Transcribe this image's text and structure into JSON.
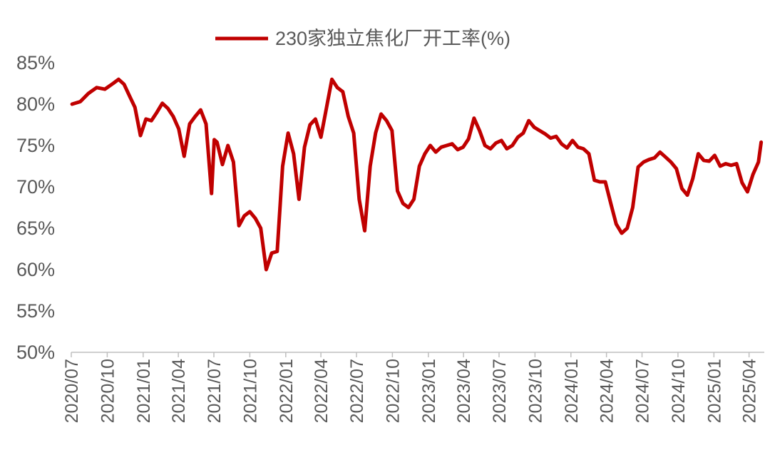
{
  "chart_data": {
    "type": "line",
    "title": "",
    "xlabel": "",
    "ylabel": "",
    "ylim": [
      50,
      85
    ],
    "y_ticks": [
      "50%",
      "55%",
      "60%",
      "65%",
      "70%",
      "75%",
      "80%",
      "85%"
    ],
    "x_ticks": [
      "2020/07",
      "2020/10",
      "2021/01",
      "2021/04",
      "2021/07",
      "2021/10",
      "2022/01",
      "2022/04",
      "2022/07",
      "2022/10",
      "2023/01",
      "2023/04",
      "2023/07",
      "2023/10",
      "2024/01",
      "2024/04",
      "2024/07",
      "2024/10",
      "2025/01",
      "2025/04"
    ],
    "legend_position": "top-center",
    "grid": false,
    "series": [
      {
        "name": "230家独立焦化厂开工率(%)",
        "color": "#C00000",
        "x": [
          "2020-07-03",
          "2020-07-24",
          "2020-08-14",
          "2020-09-04",
          "2020-09-25",
          "2020-10-16",
          "2020-10-30",
          "2020-11-13",
          "2020-11-27",
          "2020-12-11",
          "2020-12-25",
          "2021-01-08",
          "2021-01-22",
          "2021-02-05",
          "2021-02-19",
          "2021-03-05",
          "2021-03-19",
          "2021-04-02",
          "2021-04-16",
          "2021-04-30",
          "2021-05-14",
          "2021-05-28",
          "2021-06-11",
          "2021-06-25",
          "2021-07-02",
          "2021-07-09",
          "2021-07-23",
          "2021-08-06",
          "2021-08-20",
          "2021-09-03",
          "2021-09-17",
          "2021-10-01",
          "2021-10-15",
          "2021-10-29",
          "2021-11-12",
          "2021-11-26",
          "2021-12-10",
          "2021-12-24",
          "2022-01-07",
          "2022-01-21",
          "2022-02-04",
          "2022-02-18",
          "2022-03-04",
          "2022-03-18",
          "2022-04-01",
          "2022-04-15",
          "2022-04-29",
          "2022-05-13",
          "2022-05-27",
          "2022-06-10",
          "2022-06-24",
          "2022-07-08",
          "2022-07-22",
          "2022-08-05",
          "2022-08-19",
          "2022-09-02",
          "2022-09-16",
          "2022-09-30",
          "2022-10-14",
          "2022-10-28",
          "2022-11-11",
          "2022-11-25",
          "2022-12-09",
          "2022-12-23",
          "2023-01-06",
          "2023-01-20",
          "2023-02-03",
          "2023-02-17",
          "2023-03-03",
          "2023-03-17",
          "2023-03-31",
          "2023-04-14",
          "2023-04-28",
          "2023-05-12",
          "2023-05-26",
          "2023-06-09",
          "2023-06-23",
          "2023-07-07",
          "2023-07-21",
          "2023-08-04",
          "2023-08-18",
          "2023-09-01",
          "2023-09-15",
          "2023-09-29",
          "2023-10-13",
          "2023-10-27",
          "2023-11-10",
          "2023-11-24",
          "2023-12-08",
          "2023-12-22",
          "2024-01-05",
          "2024-01-19",
          "2024-02-02",
          "2024-02-16",
          "2024-03-01",
          "2024-03-15",
          "2024-03-29",
          "2024-04-12",
          "2024-04-26",
          "2024-05-10",
          "2024-05-24",
          "2024-06-07",
          "2024-06-21",
          "2024-07-05",
          "2024-07-19",
          "2024-08-02",
          "2024-08-16",
          "2024-08-30",
          "2024-09-13",
          "2024-09-27",
          "2024-10-11",
          "2024-10-25",
          "2024-11-08",
          "2024-11-22",
          "2024-12-06",
          "2024-12-20",
          "2025-01-03",
          "2025-01-17",
          "2025-01-31",
          "2025-02-14",
          "2025-02-28",
          "2025-03-14",
          "2025-03-28",
          "2025-04-11",
          "2025-04-25",
          "2025-05-02"
        ],
        "values": [
          80.0,
          80.3,
          81.3,
          82.0,
          81.8,
          82.5,
          83.0,
          82.4,
          81.0,
          79.6,
          76.2,
          78.2,
          78.0,
          79.0,
          80.1,
          79.5,
          78.5,
          77.0,
          73.7,
          77.6,
          78.5,
          79.3,
          77.6,
          69.2,
          75.7,
          75.4,
          72.7,
          75.0,
          73.0,
          65.3,
          66.5,
          67.0,
          66.2,
          65.0,
          60.0,
          62.0,
          62.2,
          72.5,
          76.5,
          74.0,
          68.5,
          74.8,
          77.5,
          78.2,
          76.0,
          79.5,
          83.0,
          82.0,
          81.5,
          78.5,
          76.5,
          68.5,
          64.7,
          72.5,
          76.5,
          78.8,
          78.0,
          76.8,
          69.5,
          68.0,
          67.5,
          68.5,
          72.5,
          74.0,
          75.0,
          74.2,
          74.8,
          75.0,
          75.2,
          74.5,
          74.8,
          75.8,
          78.3,
          76.8,
          75.0,
          74.6,
          75.3,
          75.6,
          74.6,
          75.0,
          76.0,
          76.5,
          78.0,
          77.2,
          76.8,
          76.4,
          75.9,
          76.1,
          75.2,
          74.7,
          75.6,
          74.8,
          74.6,
          74.0,
          70.8,
          70.6,
          70.6,
          68.0,
          65.5,
          64.4,
          65.0,
          67.5,
          72.4,
          73.0,
          73.3,
          73.5,
          74.2,
          73.6,
          73.0,
          72.2,
          69.8,
          69.0,
          71.0,
          74.0,
          73.2,
          73.1,
          73.8,
          72.5,
          72.8,
          72.6,
          72.8,
          70.5,
          69.4,
          71.5,
          73.0,
          75.4
        ]
      }
    ]
  }
}
